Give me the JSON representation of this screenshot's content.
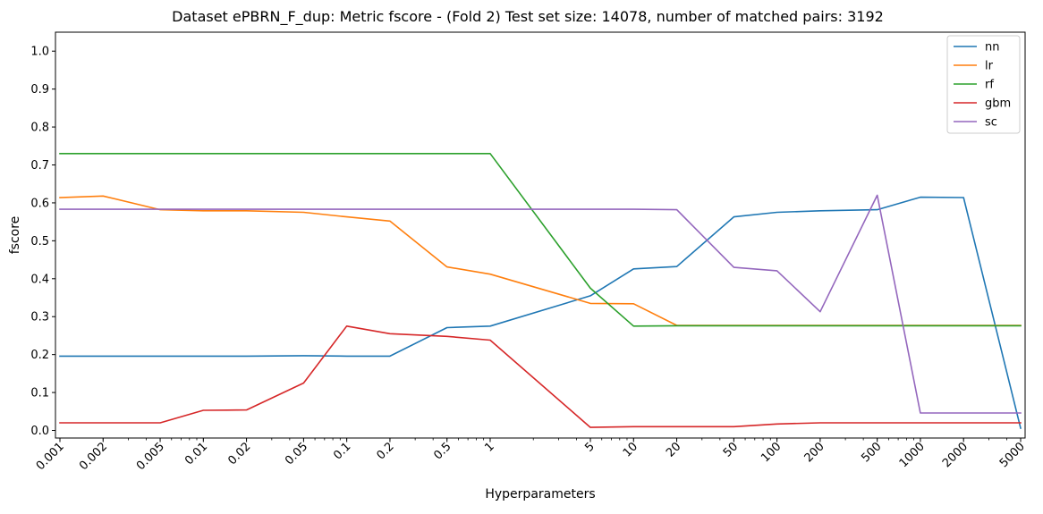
{
  "chart_data": {
    "type": "line",
    "title": "Dataset ePBRN_F_dup: Metric fscore - (Fold 2) Test set size: 14078, number of matched pairs: 3192",
    "xlabel": "Hyperparameters",
    "ylabel": "fscore",
    "x_scale": "log",
    "x": [
      0.001,
      0.002,
      0.005,
      0.01,
      0.02,
      0.05,
      0.1,
      0.2,
      0.5,
      1,
      5,
      10,
      20,
      50,
      100,
      200,
      500,
      1000,
      2000,
      5000
    ],
    "x_tick_labels": [
      "0.001",
      "0.002",
      "0.005",
      "0.01",
      "0.02",
      "0.05",
      "0.1",
      "0.2",
      "0.5",
      "1",
      "5",
      "10",
      "20",
      "50",
      "100",
      "200",
      "500",
      "1000",
      "2000",
      "5000"
    ],
    "ylim": [
      -0.02,
      1.05
    ],
    "y_ticks": [
      0.0,
      0.1,
      0.2,
      0.3,
      0.4,
      0.5,
      0.6,
      0.7,
      0.8,
      0.9,
      1.0
    ],
    "y_tick_labels": [
      "0.0",
      "0.1",
      "0.2",
      "0.3",
      "0.4",
      "0.5",
      "0.6",
      "0.7",
      "0.8",
      "0.9",
      "1.0"
    ],
    "grid": false,
    "legend_position": "top-right",
    "series": [
      {
        "name": "nn",
        "color": "#1f77b4",
        "values": [
          0.196,
          0.196,
          0.196,
          0.196,
          0.196,
          0.197,
          0.196,
          0.196,
          0.271,
          0.275,
          0.355,
          0.426,
          0.432,
          0.563,
          0.575,
          0.579,
          0.582,
          0.615,
          0.614,
          0.006
        ]
      },
      {
        "name": "lr",
        "color": "#ff7f0e",
        "values": [
          0.614,
          0.618,
          0.582,
          0.579,
          0.579,
          0.575,
          0.563,
          0.552,
          0.431,
          0.412,
          0.335,
          0.334,
          0.277,
          0.277,
          0.277,
          0.277,
          0.277,
          0.277,
          0.277,
          0.277
        ]
      },
      {
        "name": "rf",
        "color": "#2ca02c",
        "values": [
          0.73,
          0.73,
          0.73,
          0.73,
          0.73,
          0.73,
          0.73,
          0.73,
          0.73,
          0.73,
          0.375,
          0.275,
          0.276,
          0.276,
          0.276,
          0.276,
          0.276,
          0.276,
          0.276,
          0.276
        ]
      },
      {
        "name": "gbm",
        "color": "#d62728",
        "values": [
          0.02,
          0.02,
          0.02,
          0.053,
          0.054,
          0.125,
          0.275,
          0.255,
          0.248,
          0.238,
          0.008,
          0.01,
          0.01,
          0.01,
          0.017,
          0.02,
          0.02,
          0.02,
          0.02,
          0.02
        ]
      },
      {
        "name": "sc",
        "color": "#9467bd",
        "values": [
          0.583,
          0.583,
          0.583,
          0.583,
          0.583,
          0.583,
          0.583,
          0.583,
          0.583,
          0.583,
          0.583,
          0.583,
          0.582,
          0.43,
          0.421,
          0.313,
          0.62,
          0.046,
          0.046,
          0.046
        ]
      }
    ]
  }
}
